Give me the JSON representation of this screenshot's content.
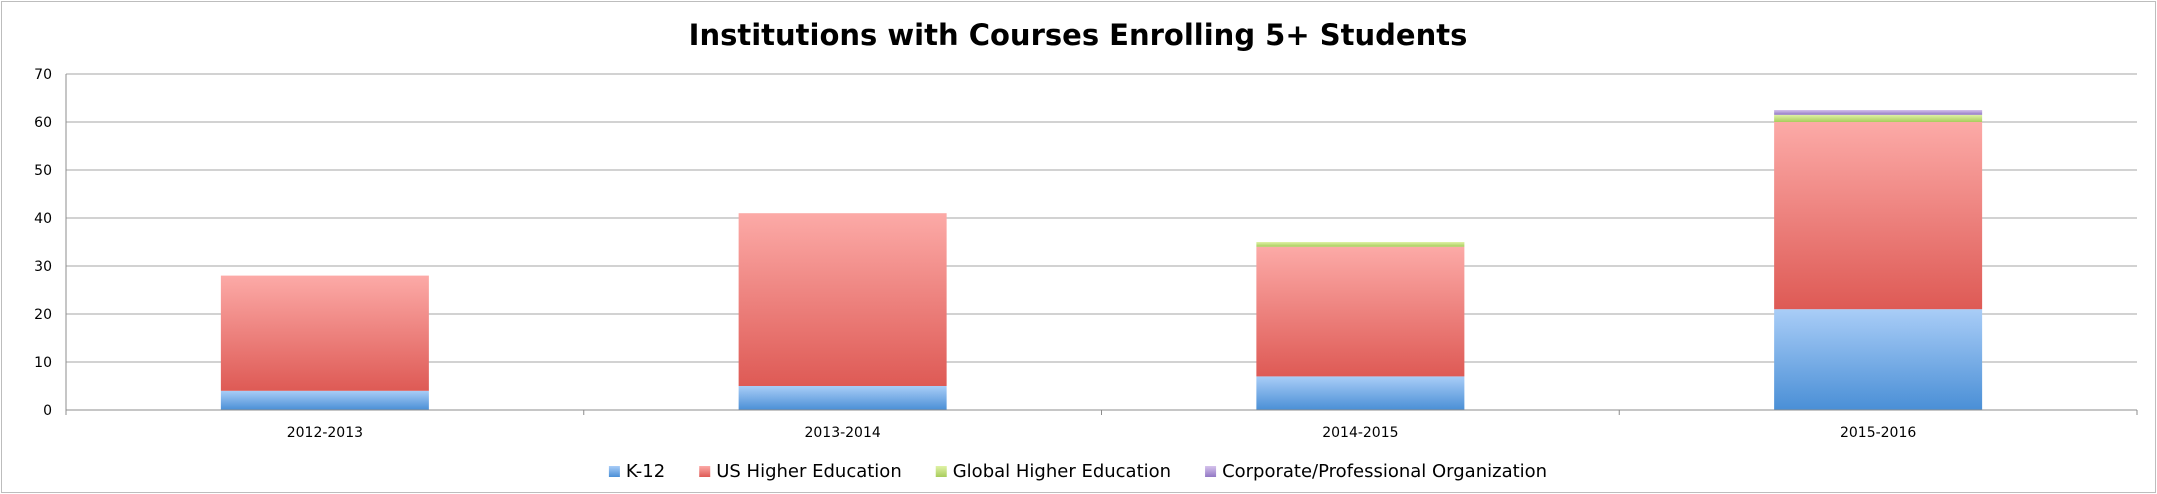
{
  "chart_data": {
    "type": "bar",
    "stacked": true,
    "title": "Institutions with Courses Enrolling 5+ Students",
    "xlabel": "",
    "ylabel": "",
    "categories": [
      "2012-2013",
      "2013-2014",
      "2014-2015",
      "2015-2016"
    ],
    "ylim": [
      0,
      70
    ],
    "yticks": [
      0,
      10,
      20,
      30,
      40,
      50,
      60,
      70
    ],
    "grid": true,
    "legend_position": "bottom",
    "series": [
      {
        "name": "K-12",
        "values": [
          4,
          5,
          7,
          21
        ],
        "color_light": "#a9cdf7",
        "color_dark": "#4a8fd6"
      },
      {
        "name": "US Higher Education",
        "values": [
          24,
          36,
          27,
          39
        ],
        "color_light": "#fcaaa7",
        "color_dark": "#de5a55"
      },
      {
        "name": "Global Higher Education",
        "values": [
          0,
          0,
          1,
          1.5
        ],
        "color_light": "#e0f2a6",
        "color_dark": "#a8cc5c"
      },
      {
        "name": "Corporate/Professional Organization",
        "values": [
          0,
          0,
          0,
          1
        ],
        "color_light": "#d5c2ec",
        "color_dark": "#9278c4"
      }
    ]
  }
}
